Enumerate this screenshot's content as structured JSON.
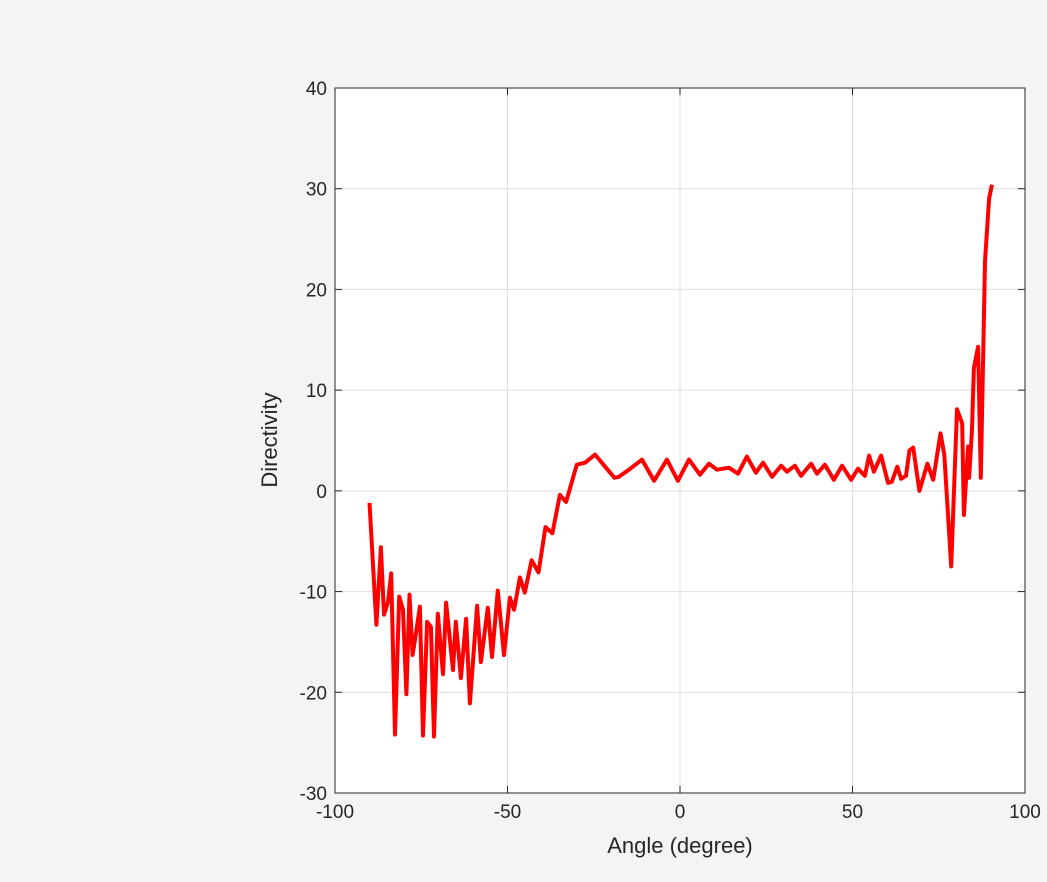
{
  "figure": {
    "background": "#f4f4f4",
    "axes_background": "#ffffff",
    "grid_color": "#dfdfdf",
    "axis_color": "#262626",
    "line_color": "#ff0000"
  },
  "chart_data": {
    "type": "line",
    "title": "",
    "xlabel": "Angle (degree)",
    "ylabel": "Directivity",
    "xlim": [
      -100,
      100
    ],
    "ylim": [
      -30,
      40
    ],
    "xticks": [
      -100,
      -50,
      0,
      50,
      100
    ],
    "yticks": [
      -30,
      -20,
      -10,
      0,
      10,
      20,
      30,
      40
    ],
    "grid": true,
    "legend": null,
    "series": [
      {
        "name": "Directivity",
        "color": "#ff0000",
        "x": [
          -90,
          -88,
          -86.7,
          -85.8,
          -84.6,
          -83.7,
          -82.6,
          -81.4,
          -80.3,
          -79.3,
          -78.4,
          -77.5,
          -76.3,
          -75.4,
          -74.5,
          -73.3,
          -72.2,
          -71.3,
          -70.2,
          -68.7,
          -67.8,
          -65.8,
          -65,
          -63.5,
          -62,
          -60.9,
          -58.8,
          -57.7,
          -55.7,
          -54.5,
          -52.8,
          -51,
          -49.3,
          -48.1,
          -46.4,
          -45,
          -43,
          -41,
          -39,
          -37,
          -34.8,
          -33,
          -29.9,
          -27.5,
          -24.6,
          -21.7,
          -19,
          -17.7,
          -14.8,
          -11,
          -7.5,
          -3.8,
          -0.6,
          2.6,
          5.8,
          8.4,
          10.7,
          14.2,
          16.8,
          19.4,
          22,
          24.1,
          26.7,
          29.3,
          31,
          33.3,
          35.1,
          38,
          39.7,
          42,
          44.6,
          47,
          49.6,
          51.6,
          53.6,
          54.8,
          56.2,
          58.3,
          60.3,
          61.4,
          63,
          64.1,
          65.5,
          66.5,
          67.6,
          69.4,
          71.7,
          73.4,
          75.5,
          76.6,
          78.6,
          80.3,
          81.8,
          82.3,
          83.5,
          83.8,
          84.6,
          85.2,
          86.4,
          87.2,
          88.4,
          89.6,
          90.4
        ],
        "y": [
          -1.2,
          -13.3,
          -5.6,
          -12.3,
          -11,
          -8.2,
          -24.2,
          -10.5,
          -11.8,
          -20.2,
          -10.3,
          -16.3,
          -13.6,
          -11.5,
          -24.3,
          -13,
          -13.5,
          -24.4,
          -12.2,
          -18.2,
          -11.1,
          -17.8,
          -13,
          -18.6,
          -12.7,
          -21.1,
          -11.4,
          -17,
          -11.6,
          -16.5,
          -9.9,
          -16.3,
          -10.6,
          -11.8,
          -8.6,
          -10.1,
          -6.9,
          -8.1,
          -3.6,
          -4.2,
          -0.4,
          -1.1,
          2.6,
          2.8,
          3.6,
          2.4,
          1.3,
          1.4,
          2.1,
          3.1,
          1,
          3.1,
          1,
          3.1,
          1.6,
          2.7,
          2.1,
          2.3,
          1.7,
          3.4,
          1.8,
          2.8,
          1.4,
          2.5,
          1.9,
          2.5,
          1.5,
          2.7,
          1.7,
          2.6,
          1.1,
          2.5,
          1.1,
          2.2,
          1.5,
          3.5,
          1.9,
          3.5,
          0.8,
          0.9,
          2.4,
          1.2,
          1.5,
          4,
          4.3,
          0,
          2.7,
          1.1,
          5.7,
          3.6,
          -7.5,
          8.1,
          6.7,
          -2.4,
          4.4,
          1.3,
          5.9,
          12.2,
          14.3,
          1.3,
          22.8,
          29,
          30.4
        ]
      }
    ]
  }
}
